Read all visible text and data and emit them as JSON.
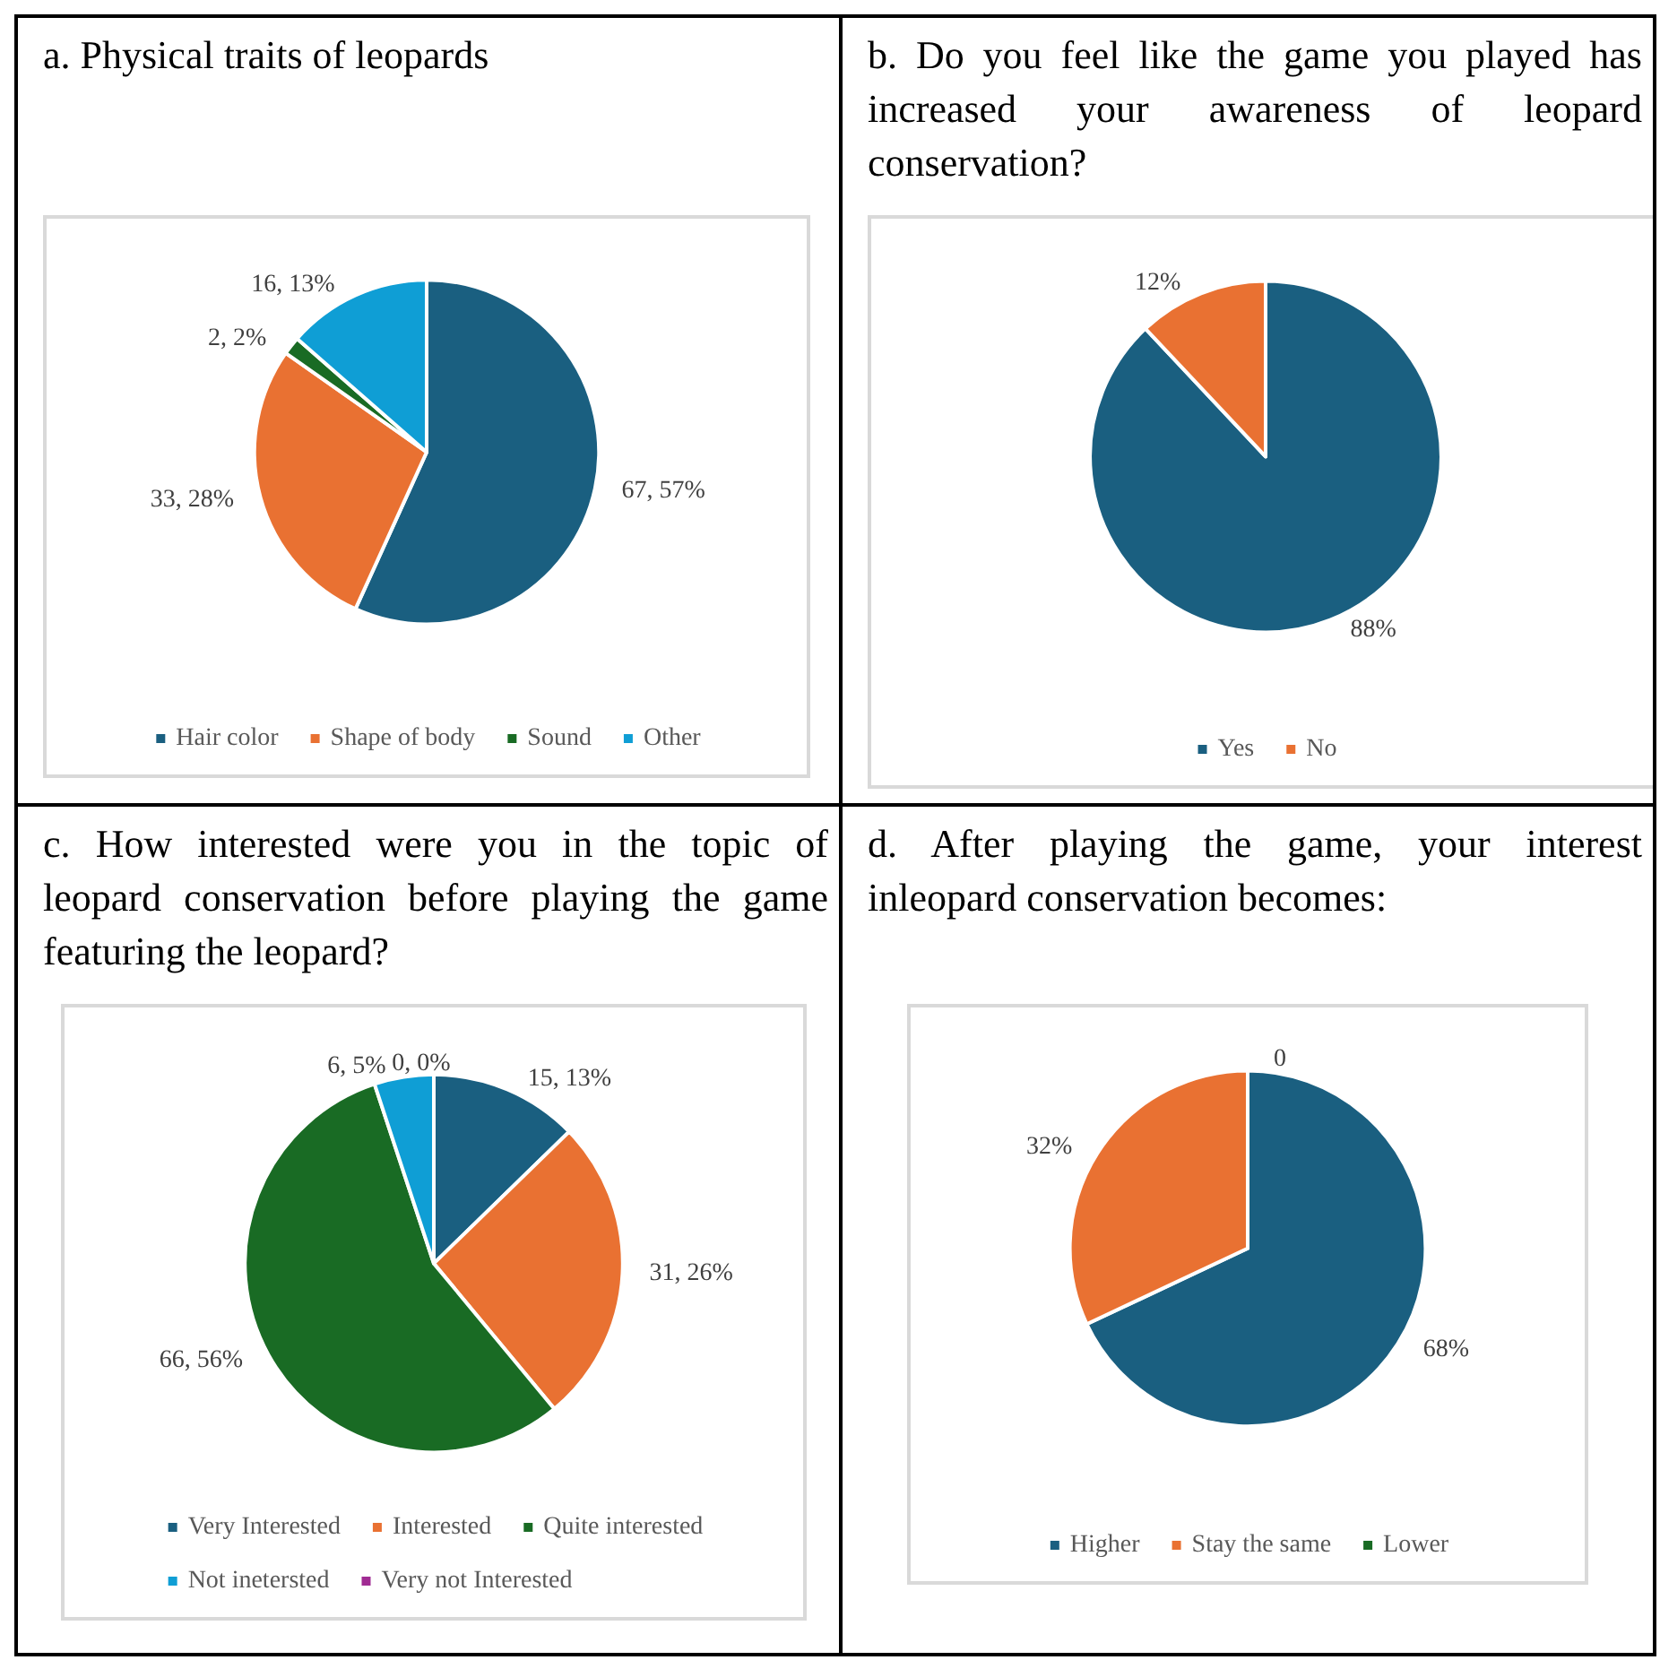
{
  "chart_data": [
    {
      "type": "pie",
      "title": "a. Physical traits of leopards",
      "categories": [
        "Hair color",
        "Shape of body",
        "Sound",
        "Other"
      ],
      "values": [
        67,
        33,
        2,
        16
      ],
      "colors": [
        "#1a5f80",
        "#e97132",
        "#196b24",
        "#0f9ed5"
      ],
      "value_labels": [
        "67, 57%",
        "33, 28%",
        "2, 2%",
        "16, 13%"
      ],
      "legend": "bottom"
    },
    {
      "type": "pie",
      "title": "b. Do you feel like the game you played has increased your awareness of leopard conservation?",
      "categories": [
        "Yes",
        "No"
      ],
      "values": [
        88,
        12
      ],
      "colors": [
        "#1a5f80",
        "#e97132"
      ],
      "value_labels": [
        "88%",
        "12%"
      ],
      "legend": "bottom"
    },
    {
      "type": "pie",
      "title": "c. How interested were you in the topic of leopard conservation before playing the game featuring the leopard?",
      "categories": [
        "Very Interested",
        "Interested",
        "Quite interested",
        "Not inetersted",
        "Very not Interested"
      ],
      "values": [
        15,
        31,
        66,
        6,
        0
      ],
      "colors": [
        "#1a5f80",
        "#e97132",
        "#196b24",
        "#0f9ed5",
        "#a02b93"
      ],
      "value_labels": [
        "15, 13%",
        "31, 26%",
        "66, 56%",
        "6, 5%",
        "0, 0%"
      ],
      "legend": "bottom"
    },
    {
      "type": "pie",
      "title": "d. After playing the game, your interest inleopard conservation becomes:",
      "categories": [
        "Higher",
        "Stay the same",
        "Lower"
      ],
      "values": [
        68,
        32,
        0
      ],
      "colors": [
        "#1a5f80",
        "#e97132",
        "#196b24"
      ],
      "value_labels": [
        "68%",
        "32%",
        "0"
      ],
      "legend": "bottom"
    }
  ]
}
